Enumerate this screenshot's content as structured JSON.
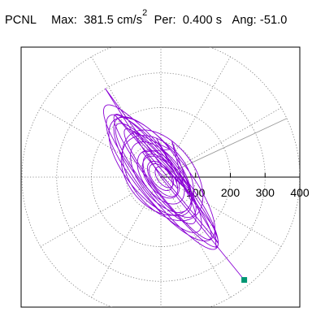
{
  "header": {
    "station": "PCNL",
    "max_label": "Max:",
    "max_value": "381.5",
    "max_unit": "cm/s",
    "max_unit_exp": "2",
    "period_label": "Per:",
    "period_value": "0.400 s",
    "angle_label": "Ang:",
    "angle_value": "-51.0"
  },
  "chart_data": {
    "type": "polar",
    "title": "",
    "radial_range": [
      0,
      400
    ],
    "radial_ticks": [
      100,
      200,
      300,
      400
    ],
    "radial_tick_labels": [
      "100",
      "200",
      "300",
      "400"
    ],
    "angle_grid_step_deg": 30,
    "grid": true,
    "grid_style": "dotted",
    "peak_marker": {
      "x": 240,
      "y": -296
    },
    "orbit_colour": "#8a00d4",
    "marker_colour": "#009673",
    "guide_line_angle_deg": 25
  }
}
